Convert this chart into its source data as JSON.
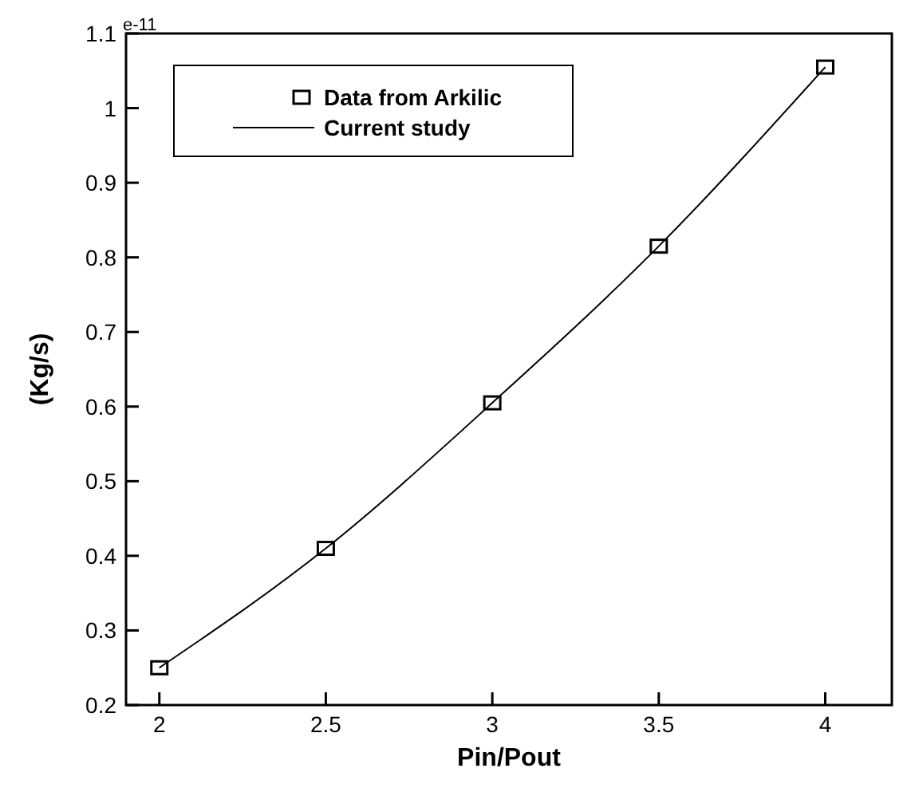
{
  "chart_data": {
    "type": "line",
    "xlabel": "Pin/Pout",
    "ylabel": "(Kg/s)",
    "annotations": [
      "e-11"
    ],
    "x": [
      2,
      2.5,
      3,
      3.5,
      4
    ],
    "series": [
      {
        "name": "Data from Arkilic",
        "type": "scatter",
        "color": "#000000",
        "marker": "square",
        "values": [
          0.25,
          0.41,
          0.605,
          0.815,
          1.055
        ]
      },
      {
        "name": "Current study",
        "color": "#000000",
        "marker": "none",
        "line_style": "solid",
        "values": [
          0.25,
          0.41,
          0.605,
          0.815,
          1.055
        ]
      }
    ],
    "xlim": [
      1.9,
      4.2
    ],
    "xticks": [
      2,
      2.5,
      3,
      3.5,
      4
    ],
    "ylim": [
      0.2,
      1.1
    ],
    "yticks": [
      0.2,
      0.3,
      0.4,
      0.5,
      0.6,
      0.7,
      0.8,
      0.9,
      1,
      1.1
    ],
    "grid": false,
    "legend": "top left"
  }
}
